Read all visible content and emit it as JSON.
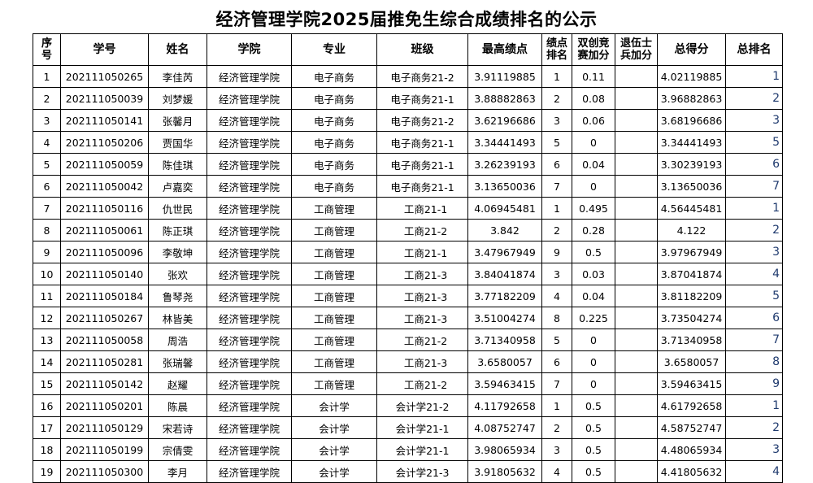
{
  "title": "经济管理学院2025届推免生综合成绩排名的公示",
  "headers": [
    "序号",
    "学号",
    "姓名",
    "学院",
    "专业",
    "班级",
    "最高绩点",
    "绩点排名",
    "双创竞赛加分",
    "退伍士兵加分",
    "总得分",
    "总排名"
  ],
  "header_lines": [
    [
      "序",
      "号"
    ],
    [
      "学号"
    ],
    [
      "姓名"
    ],
    [
      "学院"
    ],
    [
      "专业"
    ],
    [
      "班级"
    ],
    [
      "最高绩点"
    ],
    [
      "绩点",
      "排名"
    ],
    [
      "双创竞",
      "赛加分"
    ],
    [
      "退伍士",
      "兵加分"
    ],
    [
      "总得分"
    ],
    [
      "总排名"
    ]
  ],
  "rows": [
    [
      "1",
      "202111050265",
      "李佳芮",
      "经济管理学院",
      "电子商务",
      "电子商务21-2",
      "3.91119885",
      "1",
      "0.11",
      "",
      "4.02119885",
      "1"
    ],
    [
      "2",
      "202111050039",
      "刘梦媛",
      "经济管理学院",
      "电子商务",
      "电子商务21-1",
      "3.88882863",
      "2",
      "0.08",
      "",
      "3.96882863",
      "2"
    ],
    [
      "3",
      "202111050141",
      "张馨月",
      "经济管理学院",
      "电子商务",
      "电子商务21-2",
      "3.62196686",
      "3",
      "0.06",
      "",
      "3.68196686",
      "3"
    ],
    [
      "4",
      "202111050206",
      "贾国华",
      "经济管理学院",
      "电子商务",
      "电子商务21-1",
      "3.34441493",
      "5",
      "0",
      "",
      "3.34441493",
      "5"
    ],
    [
      "5",
      "202111050059",
      "陈佳琪",
      "经济管理学院",
      "电子商务",
      "电子商务21-1",
      "3.26239193",
      "6",
      "0.04",
      "",
      "3.30239193",
      "6"
    ],
    [
      "6",
      "202111050042",
      "卢嘉奕",
      "经济管理学院",
      "电子商务",
      "电子商务21-1",
      "3.13650036",
      "7",
      "0",
      "",
      "3.13650036",
      "7"
    ],
    [
      "7",
      "202111050116",
      "仇世民",
      "经济管理学院",
      "工商管理",
      "工商21-1",
      "4.06945481",
      "1",
      "0.495",
      "",
      "4.56445481",
      "1"
    ],
    [
      "8",
      "202111050061",
      "陈正琪",
      "经济管理学院",
      "工商管理",
      "工商21-2",
      "3.842",
      "2",
      "0.28",
      "",
      "4.122",
      "2"
    ],
    [
      "9",
      "202111050096",
      "李敬坤",
      "经济管理学院",
      "工商管理",
      "工商21-1",
      "3.47967949",
      "9",
      "0.5",
      "",
      "3.97967949",
      "3"
    ],
    [
      "10",
      "202111050140",
      "张欢",
      "经济管理学院",
      "工商管理",
      "工商21-3",
      "3.84041874",
      "3",
      "0.03",
      "",
      "3.87041874",
      "4"
    ],
    [
      "11",
      "202111050184",
      "鲁琴尧",
      "经济管理学院",
      "工商管理",
      "工商21-3",
      "3.77182209",
      "4",
      "0.04",
      "",
      "3.81182209",
      "5"
    ],
    [
      "12",
      "202111050267",
      "林皆美",
      "经济管理学院",
      "工商管理",
      "工商21-3",
      "3.51004274",
      "8",
      "0.225",
      "",
      "3.73504274",
      "6"
    ],
    [
      "13",
      "202111050058",
      "周浩",
      "经济管理学院",
      "工商管理",
      "工商21-2",
      "3.71340958",
      "5",
      "0",
      "",
      "3.71340958",
      "7"
    ],
    [
      "14",
      "202111050281",
      "张瑞馨",
      "经济管理学院",
      "工商管理",
      "工商21-3",
      "3.6580057",
      "6",
      "0",
      "",
      "3.6580057",
      "8"
    ],
    [
      "15",
      "202111050142",
      "赵耀",
      "经济管理学院",
      "工商管理",
      "工商21-2",
      "3.59463415",
      "7",
      "0",
      "",
      "3.59463415",
      "9"
    ],
    [
      "16",
      "202111050201",
      "陈晨",
      "经济管理学院",
      "会计学",
      "会计学21-2",
      "4.11792658",
      "1",
      "0.5",
      "",
      "4.61792658",
      "1"
    ],
    [
      "17",
      "202111050129",
      "宋若诗",
      "经济管理学院",
      "会计学",
      "会计学21-1",
      "4.08752747",
      "2",
      "0.5",
      "",
      "4.58752747",
      "2"
    ],
    [
      "18",
      "202111050199",
      "宗倩雯",
      "经济管理学院",
      "会计学",
      "会计学21-1",
      "3.98065934",
      "3",
      "0.5",
      "",
      "4.48065934",
      "3"
    ],
    [
      "19",
      "202111050300",
      "李月",
      "经济管理学院",
      "会计学",
      "会计学21-3",
      "3.91805632",
      "4",
      "0.5",
      "",
      "4.41805632",
      "4"
    ]
  ]
}
